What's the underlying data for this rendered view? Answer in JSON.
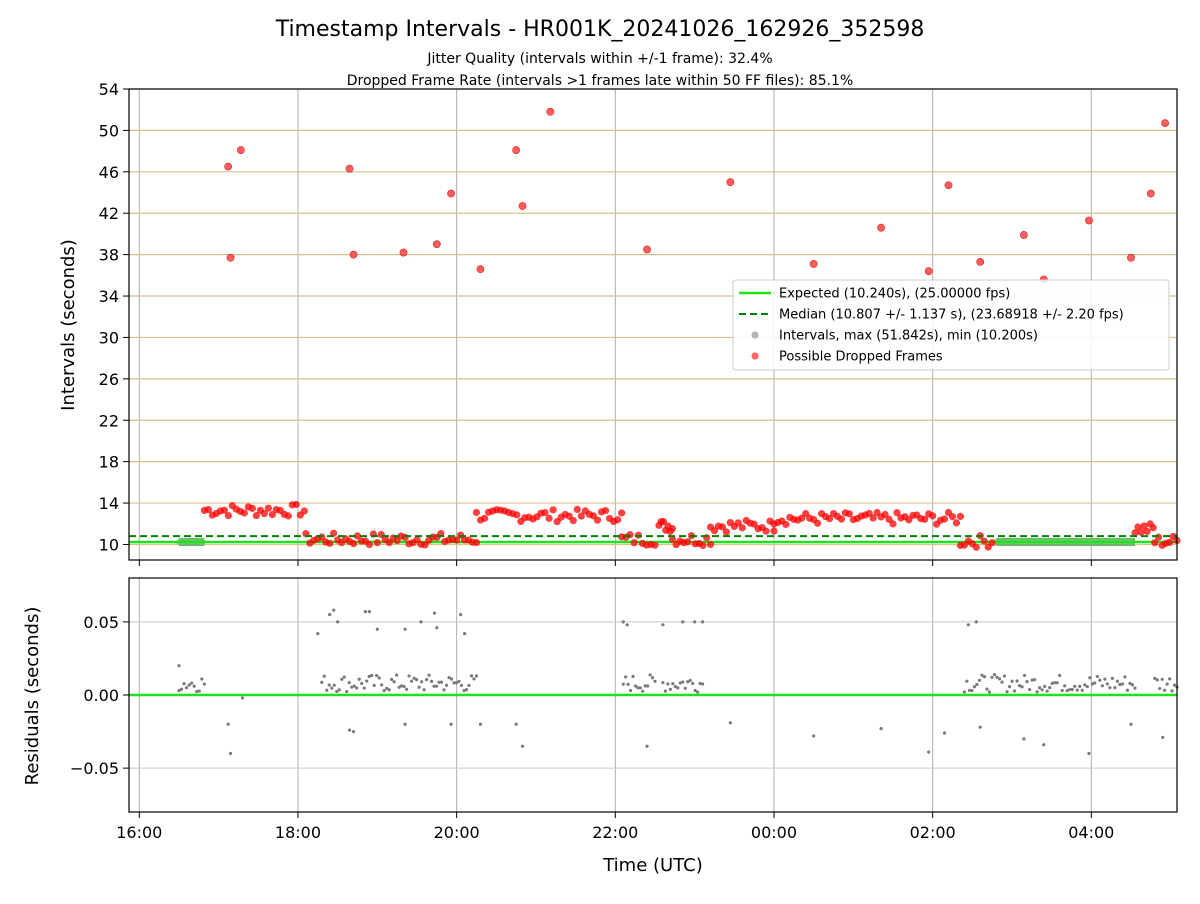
{
  "chart_data": {
    "type": "scatter",
    "title": "Timestamp Intervals - HR001K_20241026_162926_352598",
    "subtitle_lines": [
      "Jitter Quality (intervals within +/-1 frame): 32.4%",
      "Dropped Frame Rate (intervals >1 frames late within 50 FF files): 85.1%"
    ],
    "xlabel": "Time (UTC)",
    "x_ticks": [
      "16:00",
      "18:00",
      "20:00",
      "22:00",
      "00:00",
      "02:00",
      "04:00"
    ],
    "x_range_hours": [
      15.87,
      29.08
    ],
    "top_panel": {
      "ylabel": "Intervals (seconds)",
      "ylim": [
        8.5,
        54
      ],
      "y_ticks": [
        10,
        14,
        18,
        22,
        26,
        30,
        34,
        38,
        42,
        46,
        50,
        54
      ],
      "grid": true,
      "expected": 10.24,
      "median": 10.807,
      "legend": {
        "position": "center-right",
        "entries": [
          {
            "label": "Expected (10.240s), (25.00000 fps)",
            "color": "#19e619",
            "style": "solid line"
          },
          {
            "label": "Median (10.807 +/- 1.137 s), (23.68918 +/- 2.20 fps)",
            "color": "#008000",
            "style": "dashed line"
          },
          {
            "label": "Intervals, max (51.842s), min (10.200s)",
            "color": "#808080",
            "style": "marker"
          },
          {
            "label": "Possible Dropped Frames",
            "color": "#ff0000",
            "style": "marker"
          }
        ]
      },
      "dropped_outliers": [
        [
          17.12,
          46.5
        ],
        [
          17.15,
          37.7
        ],
        [
          17.28,
          48.1
        ],
        [
          18.65,
          46.3
        ],
        [
          18.7,
          38.0
        ],
        [
          19.33,
          38.2
        ],
        [
          19.75,
          39.0
        ],
        [
          19.93,
          43.9
        ],
        [
          20.3,
          36.6
        ],
        [
          20.75,
          48.1
        ],
        [
          20.83,
          42.7
        ],
        [
          21.18,
          51.8
        ],
        [
          22.4,
          38.5
        ],
        [
          23.45,
          45.0
        ],
        [
          24.5,
          37.1
        ],
        [
          25.35,
          40.6
        ],
        [
          25.95,
          36.4
        ],
        [
          26.2,
          44.7
        ],
        [
          26.6,
          37.3
        ],
        [
          27.15,
          39.9
        ],
        [
          27.4,
          35.6
        ],
        [
          27.97,
          41.3
        ],
        [
          28.5,
          37.7
        ],
        [
          28.75,
          43.9
        ],
        [
          28.93,
          50.7
        ]
      ],
      "dropped_clusters": [
        {
          "x_start": 16.82,
          "x_end": 18.08,
          "y": 13.3
        },
        {
          "x_start": 18.1,
          "x_end": 20.25,
          "y": 10.5
        },
        {
          "x_start": 20.25,
          "x_end": 22.08,
          "y": 12.8
        },
        {
          "x_start": 22.08,
          "x_end": 22.5,
          "y": 10.5
        },
        {
          "x_start": 22.55,
          "x_end": 22.72,
          "y": 11.8
        },
        {
          "x_start": 22.72,
          "x_end": 23.2,
          "y": 10.5
        },
        {
          "x_start": 23.2,
          "x_end": 24.0,
          "y": 11.8
        },
        {
          "x_start": 24.0,
          "x_end": 26.35,
          "y": 12.5
        },
        {
          "x_start": 26.35,
          "x_end": 26.75,
          "y": 10.3
        },
        {
          "x_start": 28.55,
          "x_end": 28.78,
          "y": 11.5
        },
        {
          "x_start": 28.8,
          "x_end": 29.08,
          "y": 10.3
        }
      ],
      "normal_clusters": [
        {
          "x_start": 16.5,
          "x_end": 16.82,
          "y": 10.24
        },
        {
          "x_start": 26.8,
          "x_end": 28.55,
          "y": 10.24
        }
      ]
    },
    "bottom_panel": {
      "ylabel": "Residuals (seconds)",
      "ylim": [
        -0.08,
        0.08
      ],
      "y_ticks": [
        "−0.05",
        "0.00",
        "0.05"
      ],
      "y_tick_values": [
        -0.05,
        0.0,
        0.05
      ],
      "zero_line_color": "#19e619",
      "residual_points": [
        [
          16.5,
          0.02
        ],
        [
          17.12,
          -0.02
        ],
        [
          17.15,
          -0.04
        ],
        [
          17.3,
          -0.002
        ],
        [
          18.25,
          0.042
        ],
        [
          18.4,
          0.055
        ],
        [
          18.45,
          0.058
        ],
        [
          18.5,
          0.05
        ],
        [
          18.65,
          -0.024
        ],
        [
          18.7,
          -0.025
        ],
        [
          18.85,
          0.057
        ],
        [
          18.9,
          0.057
        ],
        [
          19.0,
          0.045
        ],
        [
          19.35,
          0.045
        ],
        [
          19.35,
          -0.02
        ],
        [
          19.55,
          0.05
        ],
        [
          19.72,
          0.056
        ],
        [
          19.75,
          0.046
        ],
        [
          19.93,
          -0.02
        ],
        [
          20.05,
          0.055
        ],
        [
          20.1,
          0.042
        ],
        [
          20.3,
          -0.02
        ],
        [
          20.75,
          -0.02
        ],
        [
          20.83,
          -0.035
        ],
        [
          22.1,
          0.05
        ],
        [
          22.15,
          0.048
        ],
        [
          22.4,
          -0.035
        ],
        [
          22.6,
          0.048
        ],
        [
          22.85,
          0.05
        ],
        [
          23.0,
          0.05
        ],
        [
          23.1,
          0.05
        ],
        [
          23.45,
          -0.019
        ],
        [
          24.5,
          -0.028
        ],
        [
          25.35,
          -0.023
        ],
        [
          25.95,
          -0.039
        ],
        [
          26.15,
          -0.026
        ],
        [
          26.45,
          0.048
        ],
        [
          26.55,
          0.05
        ],
        [
          26.6,
          -0.022
        ],
        [
          27.15,
          -0.03
        ],
        [
          27.4,
          -0.034
        ],
        [
          27.97,
          -0.04
        ],
        [
          28.5,
          -0.02
        ],
        [
          28.9,
          -0.029
        ]
      ],
      "residual_bands": [
        {
          "x_start": 16.5,
          "x_end": 16.82,
          "y": 0.008
        },
        {
          "x_start": 18.3,
          "x_end": 20.25,
          "y": 0.008
        },
        {
          "x_start": 22.1,
          "x_end": 22.5,
          "y": 0.008
        },
        {
          "x_start": 22.6,
          "x_end": 23.1,
          "y": 0.008
        },
        {
          "x_start": 26.4,
          "x_end": 28.55,
          "y": 0.008
        },
        {
          "x_start": 28.8,
          "x_end": 29.08,
          "y": 0.008
        }
      ]
    }
  }
}
